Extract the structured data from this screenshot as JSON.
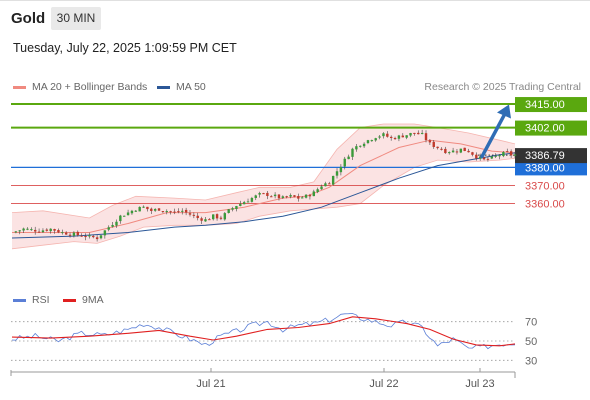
{
  "header": {
    "instrument": "Gold",
    "timeframe": "30 MIN"
  },
  "datetime": "Tuesday, July 22, 2025 1:09:59 PM CET",
  "credit": "Research © 2025 Trading Central",
  "price_legend": [
    {
      "label": "MA 20 + Bollinger Bands",
      "color": "#f08a80"
    },
    {
      "label": "MA 50",
      "color": "#2b5797"
    }
  ],
  "rsi_legend": [
    {
      "label": "RSI",
      "color": "#5b7fd6"
    },
    {
      "label": "9MA",
      "color": "#e02020"
    }
  ],
  "colors": {
    "up": "#3a9a3a",
    "down": "#c0392b",
    "resistance": "#5aa80f",
    "support": "#d94a4a",
    "pivot": "#1f6fd8",
    "current": "#333333",
    "arrow": "#2f6db5",
    "band": "#fadada"
  },
  "chart_data": [
    {
      "type": "candlestick",
      "instrument": "Gold",
      "timeframe": "30 MIN",
      "x_ticks": [
        "Jul 21",
        "Jul 22",
        "Jul 23"
      ],
      "ylim": [
        3315,
        3420
      ],
      "current_price": "3386.79",
      "levels": [
        {
          "value": 3415.0,
          "label": "3415.00",
          "kind": "resistance"
        },
        {
          "value": 3402.0,
          "label": "3402.00",
          "kind": "resistance"
        },
        {
          "value": 3380.0,
          "label": "3380.00",
          "kind": "pivot"
        },
        {
          "value": 3370.0,
          "label": "3370.00",
          "kind": "support"
        },
        {
          "value": 3360.0,
          "label": "3360.00",
          "kind": "support"
        }
      ],
      "forecast_arrow": {
        "from": 3386.0,
        "to": 3412.0
      },
      "close_path": [
        [
          0,
          3344
        ],
        [
          3,
          3346
        ],
        [
          7,
          3345
        ],
        [
          10,
          3346
        ],
        [
          13,
          3344
        ],
        [
          16,
          3343
        ],
        [
          19,
          3342
        ],
        [
          22,
          3341
        ],
        [
          24,
          3345
        ],
        [
          26,
          3349
        ],
        [
          28,
          3353
        ],
        [
          30,
          3355
        ],
        [
          32,
          3357
        ],
        [
          34,
          3358
        ],
        [
          36,
          3356
        ],
        [
          38,
          3357
        ],
        [
          40,
          3356
        ],
        [
          42,
          3355
        ],
        [
          44,
          3356
        ],
        [
          46,
          3354
        ],
        [
          48,
          3352
        ],
        [
          50,
          3351
        ],
        [
          52,
          3353
        ],
        [
          54,
          3352
        ],
        [
          56,
          3356
        ],
        [
          58,
          3359
        ],
        [
          60,
          3361
        ],
        [
          62,
          3363
        ],
        [
          64,
          3365
        ],
        [
          66,
          3365
        ],
        [
          68,
          3364
        ],
        [
          70,
          3363
        ],
        [
          72,
          3364
        ],
        [
          74,
          3363
        ],
        [
          76,
          3364
        ],
        [
          78,
          3366
        ],
        [
          80,
          3370
        ],
        [
          82,
          3372
        ],
        [
          84,
          3378
        ],
        [
          86,
          3384
        ],
        [
          88,
          3390
        ],
        [
          90,
          3393
        ],
        [
          92,
          3395
        ],
        [
          94,
          3397
        ],
        [
          96,
          3398
        ],
        [
          98,
          3396
        ],
        [
          100,
          3397
        ],
        [
          102,
          3398
        ],
        [
          104,
          3399
        ],
        [
          106,
          3398
        ],
        [
          108,
          3393
        ],
        [
          110,
          3391
        ],
        [
          112,
          3389
        ],
        [
          114,
          3389
        ],
        [
          116,
          3390
        ],
        [
          118,
          3389
        ],
        [
          120,
          3386
        ],
        [
          122,
          3384
        ],
        [
          124,
          3385
        ],
        [
          126,
          3387
        ],
        [
          128,
          3388
        ],
        [
          129,
          3387
        ],
        [
          130,
          3387
        ]
      ],
      "ma20_path": [
        [
          0,
          3344
        ],
        [
          20,
          3344
        ],
        [
          30,
          3349
        ],
        [
          40,
          3355
        ],
        [
          50,
          3355
        ],
        [
          60,
          3358
        ],
        [
          70,
          3363
        ],
        [
          76,
          3364
        ],
        [
          82,
          3369
        ],
        [
          90,
          3381
        ],
        [
          100,
          3391
        ],
        [
          108,
          3395
        ],
        [
          116,
          3393
        ],
        [
          124,
          3389
        ],
        [
          130,
          3388
        ]
      ],
      "ma50_path": [
        [
          0,
          3341
        ],
        [
          16,
          3342
        ],
        [
          30,
          3344
        ],
        [
          42,
          3347
        ],
        [
          50,
          3348
        ],
        [
          60,
          3350
        ],
        [
          70,
          3353
        ],
        [
          80,
          3358
        ],
        [
          90,
          3366
        ],
        [
          100,
          3374
        ],
        [
          110,
          3381
        ],
        [
          118,
          3384
        ],
        [
          126,
          3387
        ],
        [
          130,
          3388
        ]
      ],
      "band_upper": [
        [
          0,
          3355
        ],
        [
          8,
          3356
        ],
        [
          20,
          3352
        ],
        [
          26,
          3359
        ],
        [
          32,
          3364
        ],
        [
          42,
          3363
        ],
        [
          50,
          3362
        ],
        [
          58,
          3366
        ],
        [
          64,
          3369
        ],
        [
          72,
          3369
        ],
        [
          78,
          3372
        ],
        [
          84,
          3390
        ],
        [
          90,
          3402
        ],
        [
          96,
          3404
        ],
        [
          104,
          3404
        ],
        [
          110,
          3402
        ],
        [
          118,
          3399
        ],
        [
          126,
          3395
        ],
        [
          130,
          3393
        ]
      ],
      "band_lower": [
        [
          0,
          3335
        ],
        [
          8,
          3337
        ],
        [
          16,
          3339
        ],
        [
          22,
          3338
        ],
        [
          28,
          3342
        ],
        [
          34,
          3347
        ],
        [
          42,
          3348
        ],
        [
          50,
          3348
        ],
        [
          58,
          3349
        ],
        [
          64,
          3353
        ],
        [
          72,
          3356
        ],
        [
          78,
          3357
        ],
        [
          84,
          3358
        ],
        [
          90,
          3360
        ],
        [
          96,
          3370
        ],
        [
          104,
          3380
        ],
        [
          110,
          3384
        ],
        [
          118,
          3383
        ],
        [
          126,
          3384
        ],
        [
          130,
          3385
        ]
      ]
    },
    {
      "type": "line",
      "title": "RSI",
      "ylim": [
        20,
        80
      ],
      "y_ticks": [
        70,
        50,
        30
      ],
      "series": [
        {
          "name": "RSI",
          "values": [
            [
              0,
              52
            ],
            [
              6,
              55
            ],
            [
              12,
              50
            ],
            [
              18,
              58
            ],
            [
              24,
              56
            ],
            [
              30,
              62
            ],
            [
              34,
              68
            ],
            [
              38,
              64
            ],
            [
              42,
              58
            ],
            [
              46,
              52
            ],
            [
              50,
              46
            ],
            [
              54,
              55
            ],
            [
              58,
              60
            ],
            [
              62,
              66
            ],
            [
              66,
              70
            ],
            [
              70,
              62
            ],
            [
              74,
              66
            ],
            [
              78,
              68
            ],
            [
              82,
              72
            ],
            [
              86,
              78
            ],
            [
              90,
              74
            ],
            [
              94,
              70
            ],
            [
              98,
              66
            ],
            [
              102,
              70
            ],
            [
              106,
              64
            ],
            [
              108,
              54
            ],
            [
              110,
              45
            ],
            [
              114,
              52
            ],
            [
              118,
              42
            ],
            [
              122,
              44
            ],
            [
              126,
              47
            ],
            [
              130,
              48
            ]
          ]
        },
        {
          "name": "9MA",
          "values": [
            [
              0,
              54
            ],
            [
              10,
              53
            ],
            [
              20,
              55
            ],
            [
              30,
              58
            ],
            [
              38,
              61
            ],
            [
              46,
              55
            ],
            [
              52,
              51
            ],
            [
              58,
              55
            ],
            [
              66,
              62
            ],
            [
              74,
              64
            ],
            [
              82,
              68
            ],
            [
              88,
              75
            ],
            [
              94,
              73
            ],
            [
              102,
              68
            ],
            [
              108,
              62
            ],
            [
              114,
              52
            ],
            [
              120,
              46
            ],
            [
              126,
              45
            ],
            [
              130,
              47
            ]
          ]
        }
      ]
    }
  ]
}
